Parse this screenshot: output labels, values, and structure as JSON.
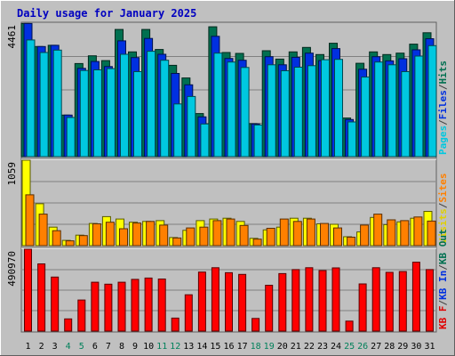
{
  "chart_data": {
    "type": "bar",
    "title": "Daily usage for January 2025",
    "categories": [
      "1",
      "2",
      "3",
      "4",
      "5",
      "6",
      "7",
      "8",
      "9",
      "10",
      "11",
      "12",
      "13",
      "14",
      "15",
      "16",
      "17",
      "18",
      "19",
      "20",
      "21",
      "22",
      "23",
      "24",
      "25",
      "26",
      "27",
      "28",
      "29",
      "30",
      "31"
    ],
    "weekend_days": [
      "4",
      "5",
      "11",
      "12",
      "18",
      "19",
      "25",
      "26"
    ],
    "panels": [
      {
        "name": "hits",
        "max_label": "4461",
        "ylim": [
          0,
          4461
        ],
        "legend": [
          {
            "text": "Pages",
            "color": "#00c8e0"
          },
          {
            "text": "/",
            "color": "#404040"
          },
          {
            "text": "Files",
            "color": "#0030e0"
          },
          {
            "text": "/",
            "color": "#404040"
          },
          {
            "text": "Hits",
            "color": "#007050"
          }
        ],
        "series": [
          {
            "name": "Hits",
            "color": "#007050",
            "values": [
              4450,
              3680,
              3720,
              1390,
              3110,
              3370,
              3210,
              4250,
              3500,
              4250,
              3580,
              3050,
              2630,
              1440,
              4340,
              3480,
              3450,
              1100,
              3540,
              3260,
              3500,
              3650,
              3410,
              3790,
              1290,
              3120,
              3500,
              3410,
              3460,
              3760,
              4140
            ]
          },
          {
            "name": "Files",
            "color": "#0030e0",
            "values": [
              4450,
              3680,
              3720,
              1390,
              2950,
              3180,
              3010,
              3870,
              3310,
              3950,
              3420,
              2780,
              2400,
              1330,
              4020,
              3280,
              3220,
              1090,
              3340,
              3070,
              3320,
              3460,
              3210,
              3610,
              1240,
              2920,
              3340,
              3200,
              3270,
              3570,
              3940
            ]
          },
          {
            "name": "Pages",
            "color": "#00c8e0",
            "values": [
              3900,
              3480,
              3560,
              1310,
              2880,
              2900,
              2940,
              3420,
              2840,
              3520,
              3220,
              1760,
              2010,
              1090,
              3460,
              3160,
              2980,
              1060,
              3070,
              2870,
              2990,
              3040,
              3240,
              3250,
              1160,
              2660,
              3160,
              3070,
              2840,
              3360,
              3710
            ]
          }
        ]
      },
      {
        "name": "visits",
        "max_label": "1059",
        "ylim": [
          0,
          1059
        ],
        "legend": [
          {
            "text": "Visits",
            "color": "#e0d000"
          },
          {
            "text": "/",
            "color": "#404040"
          },
          {
            "text": "Sites",
            "color": "#ff8000"
          }
        ],
        "series": [
          {
            "name": "Visits",
            "color": "#ffff00",
            "values": [
              1059,
              520,
              230,
              65,
              130,
              275,
              360,
              330,
              290,
              300,
              310,
              100,
              190,
              310,
              330,
              340,
              300,
              90,
              195,
              230,
              340,
              340,
              270,
              265,
              110,
              170,
              350,
              260,
              295,
              340,
              425
            ]
          },
          {
            "name": "Sites",
            "color": "#ff8000",
            "values": [
              630,
              390,
              185,
              60,
              125,
              270,
              290,
              210,
              280,
              300,
              255,
              95,
              220,
              230,
              310,
              330,
              250,
              80,
              215,
              330,
              300,
              330,
              275,
              220,
              105,
              255,
              390,
              320,
              310,
              355,
              305
            ]
          }
        ]
      },
      {
        "name": "kbytes",
        "max_label": "490970",
        "ylim": [
          0,
          490970
        ],
        "legend": [
          {
            "text": "KB F",
            "color": "#e00000"
          },
          {
            "text": "/",
            "color": "#404040"
          },
          {
            "text": "KB In",
            "color": "#0030e0"
          },
          {
            "text": "/",
            "color": "#404040"
          },
          {
            "text": "KB Out",
            "color": "#007050"
          }
        ],
        "series": [
          {
            "name": "KBytes",
            "color": "#ff0000",
            "values": [
              490970,
              403000,
              324000,
              73000,
              186000,
              293000,
              281000,
              293000,
              310000,
              318000,
              312000,
              78000,
              218000,
              354000,
              380000,
              350000,
              340000,
              76000,
              275000,
              345000,
              369000,
              380000,
              363000,
              379000,
              60000,
              283000,
              380000,
              352000,
              357000,
              413000,
              369000
            ]
          }
        ]
      }
    ]
  }
}
